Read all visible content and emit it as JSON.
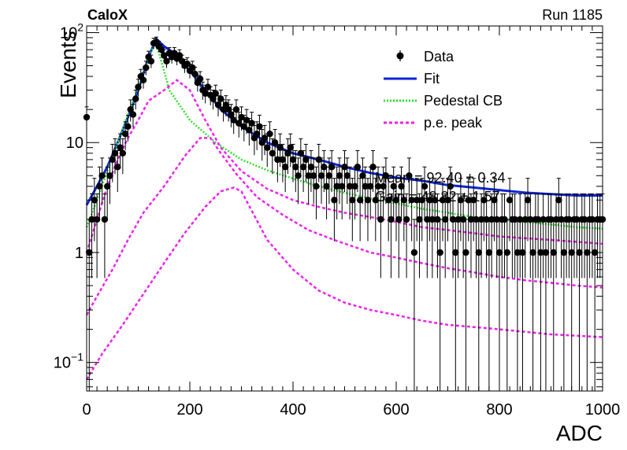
{
  "header": {
    "left_label": "CaloX",
    "right_label": "Run 1185"
  },
  "overlay_text": {
    "line1": "Mean = 92.40 ± 0.34",
    "line2": "Gain = 48.82 ± 1.57"
  },
  "chart_data": {
    "type": "scatter",
    "xlabel": "ADC",
    "ylabel": "Events",
    "xlim": [
      0,
      1000
    ],
    "ylim": [
      0.055,
      115
    ],
    "yscale": "log",
    "x_ticks": [
      0,
      200,
      400,
      600,
      800,
      1000
    ],
    "y_ticks": [
      {
        "value": 0.1,
        "base": "10",
        "exp": "−1"
      },
      {
        "value": 1,
        "label": "1"
      },
      {
        "value": 10,
        "label": "10"
      },
      {
        "value": 100,
        "base": "10",
        "exp": "2"
      }
    ],
    "legend": {
      "position": "top-right",
      "entries": [
        {
          "label": "Data",
          "style": "marker",
          "color": "#000000"
        },
        {
          "label": "Fit",
          "style": "solid",
          "color": "#0b24d8"
        },
        {
          "label": "Pedestal CB",
          "style": "dotted",
          "color": "#33dd33"
        },
        {
          "label": "p.e. peak",
          "style": "dashed",
          "color": "#ee22ee"
        }
      ]
    },
    "data_points": [
      [
        0,
        17
      ],
      [
        5,
        1
      ],
      [
        10,
        2
      ],
      [
        15,
        3
      ],
      [
        20,
        2
      ],
      [
        25,
        4
      ],
      [
        30,
        5
      ],
      [
        35,
        2
      ],
      [
        40,
        4
      ],
      [
        45,
        5
      ],
      [
        50,
        7
      ],
      [
        55,
        8
      ],
      [
        60,
        6
      ],
      [
        65,
        9
      ],
      [
        70,
        8
      ],
      [
        75,
        12
      ],
      [
        80,
        14
      ],
      [
        85,
        20
      ],
      [
        90,
        18
      ],
      [
        95,
        25
      ],
      [
        100,
        32
      ],
      [
        105,
        40
      ],
      [
        110,
        37
      ],
      [
        115,
        48
      ],
      [
        120,
        60
      ],
      [
        125,
        55
      ],
      [
        130,
        80
      ],
      [
        135,
        82
      ],
      [
        140,
        75
      ],
      [
        145,
        70
      ],
      [
        150,
        62
      ],
      [
        155,
        55
      ],
      [
        160,
        65
      ],
      [
        165,
        60
      ],
      [
        170,
        65
      ],
      [
        175,
        58
      ],
      [
        180,
        62
      ],
      [
        185,
        55
      ],
      [
        190,
        50
      ],
      [
        195,
        52
      ],
      [
        200,
        45
      ],
      [
        205,
        48
      ],
      [
        210,
        42
      ],
      [
        215,
        35
      ],
      [
        220,
        38
      ],
      [
        225,
        30
      ],
      [
        230,
        28
      ],
      [
        235,
        32
      ],
      [
        240,
        27
      ],
      [
        245,
        25
      ],
      [
        250,
        28
      ],
      [
        255,
        22
      ],
      [
        260,
        25
      ],
      [
        265,
        20
      ],
      [
        270,
        22
      ],
      [
        275,
        20
      ],
      [
        280,
        18
      ],
      [
        285,
        16
      ],
      [
        290,
        20
      ],
      [
        295,
        15
      ],
      [
        300,
        17
      ],
      [
        305,
        14
      ],
      [
        310,
        16
      ],
      [
        315,
        13
      ],
      [
        320,
        15
      ],
      [
        325,
        11
      ],
      [
        330,
        12
      ],
      [
        335,
        14
      ],
      [
        340,
        10
      ],
      [
        345,
        11
      ],
      [
        350,
        9
      ],
      [
        355,
        12
      ],
      [
        360,
        8
      ],
      [
        365,
        10
      ],
      [
        370,
        7
      ],
      [
        375,
        9
      ],
      [
        380,
        7
      ],
      [
        385,
        6
      ],
      [
        390,
        8
      ],
      [
        395,
        9
      ],
      [
        400,
        7
      ],
      [
        405,
        6
      ],
      [
        410,
        5
      ],
      [
        415,
        8
      ],
      [
        420,
        6
      ],
      [
        425,
        7
      ],
      [
        430,
        5
      ],
      [
        435,
        6
      ],
      [
        440,
        5
      ],
      [
        445,
        4
      ],
      [
        450,
        7
      ],
      [
        455,
        5
      ],
      [
        460,
        6
      ],
      [
        465,
        4
      ],
      [
        470,
        5
      ],
      [
        475,
        6
      ],
      [
        480,
        3
      ],
      [
        485,
        4
      ],
      [
        490,
        5
      ],
      [
        495,
        4
      ],
      [
        500,
        6
      ],
      [
        505,
        5
      ],
      [
        510,
        4
      ],
      [
        515,
        3
      ],
      [
        520,
        4
      ],
      [
        525,
        6
      ],
      [
        530,
        3
      ],
      [
        535,
        5
      ],
      [
        540,
        4
      ],
      [
        545,
        3
      ],
      [
        550,
        4
      ],
      [
        555,
        6
      ],
      [
        560,
        3
      ],
      [
        565,
        4
      ],
      [
        570,
        2
      ],
      [
        575,
        4
      ],
      [
        580,
        5
      ],
      [
        585,
        3
      ],
      [
        590,
        2
      ],
      [
        595,
        4
      ],
      [
        600,
        3
      ],
      [
        605,
        2
      ],
      [
        610,
        4
      ],
      [
        615,
        3
      ],
      [
        620,
        2
      ],
      [
        625,
        5
      ],
      [
        630,
        3
      ],
      [
        635,
        1
      ],
      [
        640,
        3
      ],
      [
        645,
        2
      ],
      [
        650,
        3
      ],
      [
        655,
        4
      ],
      [
        660,
        2
      ],
      [
        665,
        3
      ],
      [
        670,
        2
      ],
      [
        675,
        3
      ],
      [
        680,
        2
      ],
      [
        685,
        1
      ],
      [
        690,
        3
      ],
      [
        695,
        2
      ],
      [
        700,
        3
      ],
      [
        705,
        4
      ],
      [
        710,
        2
      ],
      [
        715,
        1
      ],
      [
        720,
        2
      ],
      [
        725,
        3
      ],
      [
        730,
        2
      ],
      [
        735,
        1
      ],
      [
        740,
        3
      ],
      [
        745,
        2
      ],
      [
        750,
        3
      ],
      [
        755,
        2
      ],
      [
        760,
        1
      ],
      [
        765,
        2
      ],
      [
        770,
        3
      ],
      [
        775,
        2
      ],
      [
        780,
        1
      ],
      [
        785,
        2
      ],
      [
        790,
        3
      ],
      [
        795,
        2
      ],
      [
        800,
        1
      ],
      [
        805,
        2
      ],
      [
        810,
        2
      ],
      [
        815,
        1
      ],
      [
        820,
        3
      ],
      [
        825,
        2
      ],
      [
        830,
        2
      ],
      [
        835,
        1
      ],
      [
        840,
        2
      ],
      [
        845,
        1
      ],
      [
        850,
        2
      ],
      [
        855,
        3
      ],
      [
        860,
        2
      ],
      [
        865,
        1
      ],
      [
        870,
        2
      ],
      [
        875,
        2
      ],
      [
        880,
        1
      ],
      [
        885,
        2
      ],
      [
        890,
        1
      ],
      [
        895,
        2
      ],
      [
        900,
        2
      ],
      [
        905,
        1
      ],
      [
        910,
        2
      ],
      [
        915,
        3
      ],
      [
        920,
        2
      ],
      [
        925,
        1
      ],
      [
        930,
        2
      ],
      [
        935,
        2
      ],
      [
        940,
        1
      ],
      [
        945,
        2
      ],
      [
        950,
        2
      ],
      [
        955,
        1
      ],
      [
        960,
        2
      ],
      [
        965,
        2
      ],
      [
        970,
        1
      ],
      [
        975,
        2
      ],
      [
        980,
        2
      ],
      [
        985,
        1
      ],
      [
        990,
        2
      ],
      [
        995,
        2
      ],
      [
        1000,
        2
      ]
    ],
    "curves": [
      {
        "name": "Fit",
        "color": "#0b24d8",
        "style": "solid",
        "points": [
          [
            0,
            2.7
          ],
          [
            20,
            4
          ],
          [
            40,
            6
          ],
          [
            60,
            10
          ],
          [
            80,
            17
          ],
          [
            100,
            30
          ],
          [
            120,
            60
          ],
          [
            135,
            88
          ],
          [
            150,
            75
          ],
          [
            170,
            65
          ],
          [
            200,
            45
          ],
          [
            230,
            30
          ],
          [
            260,
            20
          ],
          [
            300,
            14
          ],
          [
            350,
            10
          ],
          [
            400,
            8
          ],
          [
            450,
            7
          ],
          [
            500,
            6
          ],
          [
            550,
            5.3
          ],
          [
            600,
            4.8
          ],
          [
            650,
            4.5
          ],
          [
            700,
            4.1
          ],
          [
            750,
            3.9
          ],
          [
            800,
            3.7
          ],
          [
            850,
            3.5
          ],
          [
            900,
            3.4
          ],
          [
            950,
            3.3
          ],
          [
            1000,
            3.3
          ]
        ]
      },
      {
        "name": "Pedestal CB",
        "color": "#33dd33",
        "style": "dotted",
        "points": [
          [
            0,
            1.7
          ],
          [
            20,
            3
          ],
          [
            40,
            5.5
          ],
          [
            60,
            10
          ],
          [
            80,
            18
          ],
          [
            100,
            32
          ],
          [
            120,
            58
          ],
          [
            132,
            80
          ],
          [
            140,
            65
          ],
          [
            150,
            45
          ],
          [
            160,
            30
          ],
          [
            180,
            22
          ],
          [
            200,
            16
          ],
          [
            250,
            10
          ],
          [
            300,
            7
          ],
          [
            350,
            5.6
          ],
          [
            400,
            4.7
          ],
          [
            450,
            4.0
          ],
          [
            500,
            3.5
          ],
          [
            550,
            3.1
          ],
          [
            600,
            2.8
          ],
          [
            650,
            2.5
          ],
          [
            700,
            2.3
          ],
          [
            750,
            2.1
          ],
          [
            800,
            2.0
          ],
          [
            850,
            1.9
          ],
          [
            900,
            1.8
          ],
          [
            950,
            1.7
          ],
          [
            1000,
            1.65
          ]
        ]
      },
      {
        "name": "p.e. peak",
        "color": "#ee22ee",
        "style": "dashed",
        "points": [
          [
            0,
            1.0
          ],
          [
            20,
            2
          ],
          [
            40,
            4
          ],
          [
            60,
            7
          ],
          [
            80,
            11
          ],
          [
            100,
            16
          ],
          [
            120,
            24
          ],
          [
            150,
            30
          ],
          [
            175,
            37
          ],
          [
            200,
            30
          ],
          [
            230,
            16
          ],
          [
            260,
            9
          ],
          [
            300,
            5.5
          ],
          [
            350,
            3.8
          ],
          [
            400,
            3.0
          ],
          [
            450,
            2.6
          ],
          [
            500,
            2.3
          ],
          [
            550,
            2.1
          ],
          [
            600,
            1.9
          ],
          [
            650,
            1.7
          ],
          [
            700,
            1.6
          ],
          [
            750,
            1.5
          ],
          [
            800,
            1.4
          ],
          [
            850,
            1.35
          ],
          [
            900,
            1.3
          ],
          [
            950,
            1.25
          ],
          [
            1000,
            1.2
          ]
        ]
      },
      {
        "name": "p.e. peak",
        "color": "#ee22ee",
        "style": "dashed",
        "points": [
          [
            0,
            0.27
          ],
          [
            20,
            0.4
          ],
          [
            50,
            0.7
          ],
          [
            80,
            1.3
          ],
          [
            110,
            2.3
          ],
          [
            150,
            4
          ],
          [
            190,
            7.5
          ],
          [
            220,
            11
          ],
          [
            240,
            11
          ],
          [
            260,
            8
          ],
          [
            290,
            5.2
          ],
          [
            330,
            3.2
          ],
          [
            380,
            2.2
          ],
          [
            430,
            1.6
          ],
          [
            480,
            1.3
          ],
          [
            550,
            1.0
          ],
          [
            600,
            0.9
          ],
          [
            650,
            0.8
          ],
          [
            700,
            0.72
          ],
          [
            750,
            0.66
          ],
          [
            800,
            0.6
          ],
          [
            850,
            0.56
          ],
          [
            900,
            0.53
          ],
          [
            950,
            0.5
          ],
          [
            1000,
            0.48
          ]
        ]
      },
      {
        "name": "p.e. peak",
        "color": "#ee22ee",
        "style": "dashed",
        "points": [
          [
            0,
            0.07
          ],
          [
            30,
            0.12
          ],
          [
            70,
            0.22
          ],
          [
            110,
            0.42
          ],
          [
            150,
            0.8
          ],
          [
            190,
            1.5
          ],
          [
            230,
            2.6
          ],
          [
            260,
            3.6
          ],
          [
            285,
            3.9
          ],
          [
            300,
            3.6
          ],
          [
            320,
            2.4
          ],
          [
            350,
            1.3
          ],
          [
            400,
            0.7
          ],
          [
            450,
            0.45
          ],
          [
            500,
            0.35
          ],
          [
            550,
            0.3
          ],
          [
            600,
            0.27
          ],
          [
            650,
            0.24
          ],
          [
            700,
            0.22
          ],
          [
            750,
            0.21
          ],
          [
            800,
            0.2
          ],
          [
            850,
            0.19
          ],
          [
            900,
            0.18
          ],
          [
            950,
            0.175
          ],
          [
            1000,
            0.17
          ]
        ]
      }
    ]
  }
}
